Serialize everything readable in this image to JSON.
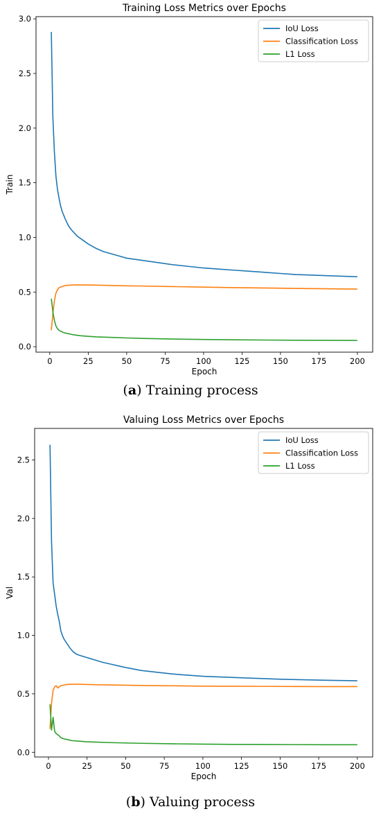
{
  "figures": [
    {
      "caption_letter": "a",
      "caption_text": "Training process"
    },
    {
      "caption_letter": "b",
      "caption_text": "Valuing process"
    }
  ],
  "chart_data": [
    {
      "type": "line",
      "title": "Training Loss Metrics over Epochs",
      "xlabel": "Epoch",
      "ylabel": "Train",
      "xlim": [
        -8.95,
        209.95
      ],
      "ylim": [
        -0.05,
        3.02
      ],
      "xticks": [
        0,
        25,
        50,
        75,
        100,
        125,
        150,
        175,
        200
      ],
      "yticks": [
        0.0,
        0.5,
        1.0,
        1.5,
        2.0,
        2.5,
        3.0
      ],
      "legend_position": "top-right",
      "grid": false,
      "series": [
        {
          "name": "IoU Loss",
          "color": "#1f77b4",
          "x": [
            1,
            2,
            3,
            4,
            5,
            6,
            7,
            8,
            10,
            12,
            14,
            16,
            18,
            20,
            25,
            30,
            35,
            40,
            45,
            50,
            60,
            70,
            80,
            90,
            100,
            110,
            120,
            130,
            140,
            150,
            160,
            170,
            180,
            190,
            200
          ],
          "y": [
            2.88,
            2.1,
            1.78,
            1.56,
            1.44,
            1.36,
            1.29,
            1.24,
            1.17,
            1.11,
            1.07,
            1.04,
            1.01,
            0.99,
            0.94,
            0.9,
            0.87,
            0.85,
            0.83,
            0.81,
            0.79,
            0.77,
            0.75,
            0.735,
            0.72,
            0.71,
            0.7,
            0.69,
            0.68,
            0.67,
            0.66,
            0.655,
            0.65,
            0.645,
            0.64
          ]
        },
        {
          "name": "Classification Loss",
          "color": "#ff7f0e",
          "x": [
            1,
            2,
            3,
            4,
            5,
            6,
            8,
            10,
            15,
            20,
            25,
            30,
            40,
            50,
            60,
            80,
            100,
            120,
            140,
            160,
            180,
            200
          ],
          "y": [
            0.15,
            0.3,
            0.42,
            0.49,
            0.52,
            0.54,
            0.55,
            0.56,
            0.565,
            0.565,
            0.565,
            0.563,
            0.56,
            0.557,
            0.555,
            0.55,
            0.545,
            0.54,
            0.537,
            0.533,
            0.53,
            0.527
          ]
        },
        {
          "name": "L1 Loss",
          "color": "#2ca02c",
          "x": [
            1,
            2,
            3,
            4,
            5,
            6,
            8,
            10,
            15,
            20,
            25,
            30,
            40,
            50,
            60,
            80,
            100,
            120,
            140,
            160,
            180,
            200
          ],
          "y": [
            0.44,
            0.32,
            0.24,
            0.19,
            0.165,
            0.15,
            0.135,
            0.125,
            0.11,
            0.1,
            0.095,
            0.09,
            0.085,
            0.08,
            0.076,
            0.07,
            0.066,
            0.063,
            0.061,
            0.059,
            0.058,
            0.057
          ]
        }
      ]
    },
    {
      "type": "line",
      "title": "Valuing Loss Metrics over Epochs",
      "xlabel": "Epoch",
      "ylabel": "Val",
      "xlim": [
        -8.95,
        209.95
      ],
      "ylim": [
        -0.04,
        2.77
      ],
      "xticks": [
        0,
        25,
        50,
        75,
        100,
        125,
        150,
        175,
        200
      ],
      "yticks": [
        0.0,
        0.5,
        1.0,
        1.5,
        2.0,
        2.5
      ],
      "legend_position": "top-right",
      "grid": false,
      "series": [
        {
          "name": "IoU Loss",
          "color": "#1f77b4",
          "x": [
            1,
            2,
            3,
            4,
            5,
            6,
            7,
            8,
            9,
            10,
            12,
            14,
            16,
            18,
            20,
            25,
            30,
            35,
            40,
            45,
            50,
            60,
            70,
            80,
            90,
            100,
            110,
            120,
            130,
            140,
            150,
            160,
            170,
            180,
            190,
            200
          ],
          "y": [
            2.63,
            1.8,
            1.45,
            1.35,
            1.25,
            1.18,
            1.12,
            1.04,
            1.0,
            0.97,
            0.93,
            0.89,
            0.86,
            0.84,
            0.83,
            0.81,
            0.79,
            0.77,
            0.755,
            0.74,
            0.725,
            0.7,
            0.685,
            0.67,
            0.66,
            0.65,
            0.645,
            0.64,
            0.635,
            0.63,
            0.625,
            0.622,
            0.619,
            0.616,
            0.614,
            0.612
          ]
        },
        {
          "name": "Classification Loss",
          "color": "#ff7f0e",
          "x": [
            1,
            2,
            3,
            4,
            5,
            6,
            7,
            8,
            10,
            12,
            15,
            20,
            25,
            30,
            40,
            50,
            60,
            80,
            100,
            120,
            140,
            160,
            180,
            200
          ],
          "y": [
            0.2,
            0.42,
            0.53,
            0.56,
            0.57,
            0.55,
            0.56,
            0.57,
            0.575,
            0.58,
            0.582,
            0.582,
            0.58,
            0.578,
            0.576,
            0.574,
            0.572,
            0.569,
            0.566,
            0.565,
            0.564,
            0.563,
            0.562,
            0.562
          ]
        },
        {
          "name": "L1 Loss",
          "color": "#2ca02c",
          "x": [
            1,
            2,
            3,
            4,
            5,
            6,
            7,
            8,
            10,
            12,
            15,
            20,
            25,
            30,
            40,
            50,
            60,
            80,
            100,
            120,
            140,
            160,
            180,
            200
          ],
          "y": [
            0.41,
            0.19,
            0.3,
            0.18,
            0.16,
            0.15,
            0.14,
            0.125,
            0.115,
            0.11,
            0.1,
            0.095,
            0.09,
            0.088,
            0.083,
            0.08,
            0.077,
            0.073,
            0.07,
            0.068,
            0.067,
            0.066,
            0.065,
            0.065
          ]
        }
      ]
    }
  ]
}
